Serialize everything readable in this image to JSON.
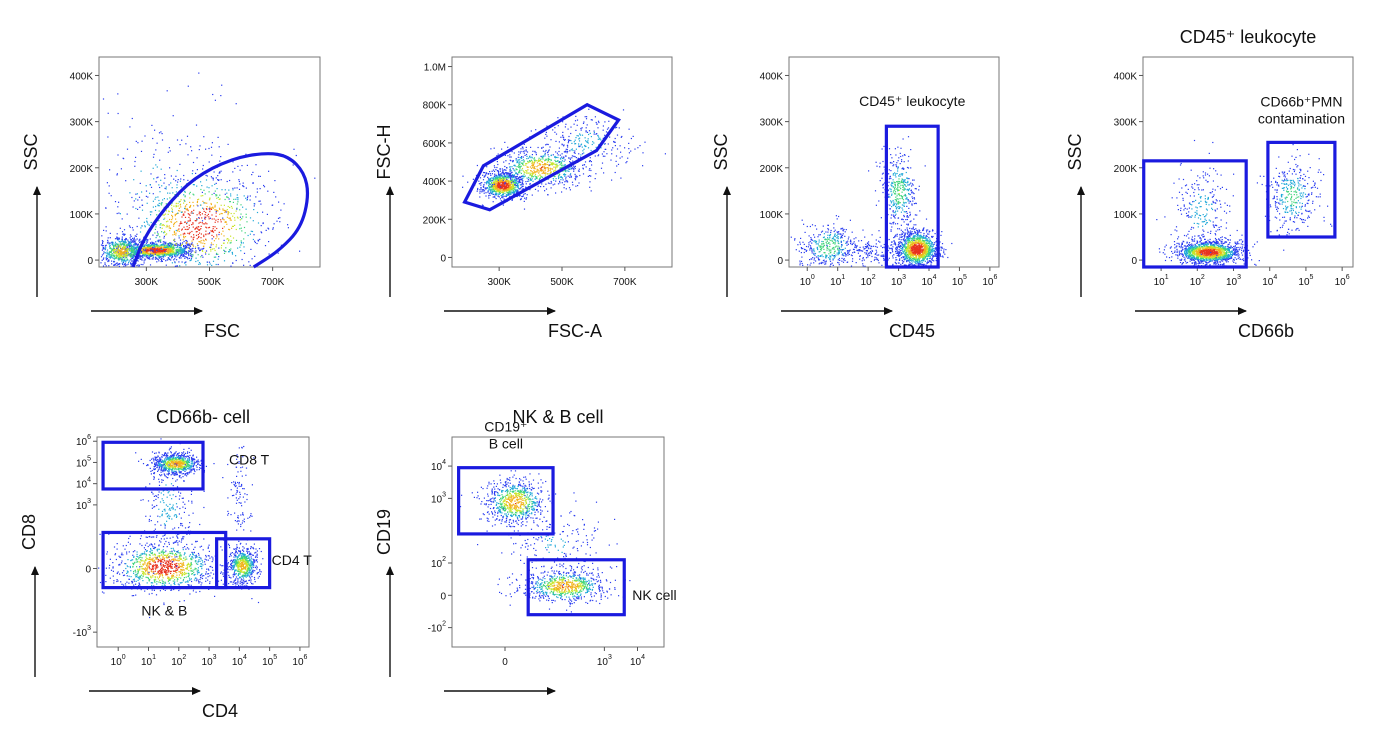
{
  "chart_data": [
    {
      "id": "p1",
      "type": "scatter",
      "title": "",
      "xlabel": "FSC",
      "ylabel": "SSC",
      "xscale": "linear",
      "yscale": "linear",
      "xlim": [
        150000,
        850000
      ],
      "ylim": [
        -15000,
        440000
      ],
      "xticks": [
        {
          "v": 300000,
          "t": "300K"
        },
        {
          "v": 500000,
          "t": "500K"
        },
        {
          "v": 700000,
          "t": "700K"
        }
      ],
      "yticks": [
        {
          "v": 0,
          "t": "0"
        },
        {
          "v": 100000,
          "t": "100K"
        },
        {
          "v": 200000,
          "t": "200K"
        },
        {
          "v": 300000,
          "t": "300K"
        },
        {
          "v": 400000,
          "t": "400K"
        }
      ],
      "clusters": [
        {
          "cx": 330000,
          "cy": 22000,
          "sx": 60000,
          "sy": 9000,
          "n": 1200
        },
        {
          "cx": 220000,
          "cy": 20000,
          "sx": 40000,
          "sy": 18000,
          "n": 600
        },
        {
          "cx": 470000,
          "cy": 80000,
          "sx": 120000,
          "sy": 60000,
          "n": 900
        },
        {
          "cx": 350000,
          "cy": 130000,
          "sx": 160000,
          "sy": 110000,
          "n": 250
        }
      ],
      "gates": [
        {
          "shape": "polygon",
          "label": "",
          "points": [
            [
              258000,
              -15000
            ],
            [
              290000,
              45000
            ],
            [
              360000,
              115000
            ],
            [
              450000,
              178000
            ],
            [
              570000,
              220000
            ],
            [
              680000,
              233000
            ],
            [
              750000,
              225000
            ],
            [
              800000,
              190000
            ],
            [
              815000,
              140000
            ],
            [
              790000,
              70000
            ],
            [
              720000,
              20000
            ],
            [
              640000,
              -15000
            ]
          ]
        }
      ]
    },
    {
      "id": "p2",
      "type": "scatter",
      "title": "",
      "xlabel": "FSC-A",
      "ylabel": "FSC-H",
      "xscale": "linear",
      "yscale": "linear",
      "xlim": [
        150000,
        850000
      ],
      "ylim": [
        -50000,
        1050000
      ],
      "xticks": [
        {
          "v": 300000,
          "t": "300K"
        },
        {
          "v": 500000,
          "t": "500K"
        },
        {
          "v": 700000,
          "t": "700K"
        }
      ],
      "yticks": [
        {
          "v": 0,
          "t": "0"
        },
        {
          "v": 200000,
          "t": "200K"
        },
        {
          "v": 400000,
          "t": "400K"
        },
        {
          "v": 600000,
          "t": "600K"
        },
        {
          "v": 800000,
          "t": "800K"
        },
        {
          "v": 1000000,
          "t": "1.0M"
        }
      ],
      "clusters": [
        {
          "cx": 310000,
          "cy": 380000,
          "sx": 35000,
          "sy": 35000,
          "n": 900
        },
        {
          "cx": 430000,
          "cy": 470000,
          "sx": 70000,
          "sy": 50000,
          "n": 700
        },
        {
          "cx": 580000,
          "cy": 600000,
          "sx": 70000,
          "sy": 70000,
          "n": 250
        }
      ],
      "gates": [
        {
          "shape": "polygon",
          "label": "",
          "points": [
            [
              190000,
              290000
            ],
            [
              250000,
              480000
            ],
            [
              580000,
              800000
            ],
            [
              680000,
              720000
            ],
            [
              610000,
              560000
            ],
            [
              270000,
              250000
            ]
          ]
        }
      ]
    },
    {
      "id": "p3",
      "type": "scatter",
      "title": "",
      "xlabel": "CD45",
      "ylabel": "SSC",
      "xscale": "log",
      "yscale": "linear",
      "xlim": [
        -0.6,
        6.3
      ],
      "ylim": [
        -15000,
        440000
      ],
      "xticks": [
        {
          "v": 0,
          "t": "10",
          "e": "0"
        },
        {
          "v": 1,
          "t": "10",
          "e": "1"
        },
        {
          "v": 2,
          "t": "10",
          "e": "2"
        },
        {
          "v": 3,
          "t": "10",
          "e": "3"
        },
        {
          "v": 4,
          "t": "10",
          "e": "4"
        },
        {
          "v": 5,
          "t": "10",
          "e": "5"
        },
        {
          "v": 6,
          "t": "10",
          "e": "6"
        }
      ],
      "yticks": [
        {
          "v": 0,
          "t": "0"
        },
        {
          "v": 100000,
          "t": "100K"
        },
        {
          "v": 200000,
          "t": "200K"
        },
        {
          "v": 300000,
          "t": "300K"
        },
        {
          "v": 400000,
          "t": "400K"
        }
      ],
      "clusters": [
        {
          "cx": 3.6,
          "cy": 25000,
          "sx": 0.35,
          "sy": 20000,
          "n": 1200
        },
        {
          "cx": 3.0,
          "cy": 150000,
          "sx": 0.3,
          "sy": 45000,
          "n": 400
        },
        {
          "cx": 0.7,
          "cy": 30000,
          "sx": 0.5,
          "sy": 25000,
          "n": 400
        },
        {
          "cx": 2.0,
          "cy": 20000,
          "sx": 0.5,
          "sy": 15000,
          "n": 150
        }
      ],
      "gates": [
        {
          "shape": "rect",
          "label": "CD45⁺ leukocyte",
          "x": [
            2.6,
            4.3
          ],
          "y": [
            -15000,
            290000
          ]
        }
      ]
    },
    {
      "id": "p4",
      "type": "scatter",
      "title": "CD45⁺ leukocyte",
      "xlabel": "CD66b",
      "ylabel": "SSC",
      "xscale": "log",
      "yscale": "linear",
      "xlim": [
        0.5,
        6.3
      ],
      "ylim": [
        -15000,
        440000
      ],
      "xticks": [
        {
          "v": 1,
          "t": "10",
          "e": "1"
        },
        {
          "v": 2,
          "t": "10",
          "e": "2"
        },
        {
          "v": 3,
          "t": "10",
          "e": "3"
        },
        {
          "v": 4,
          "t": "10",
          "e": "4"
        },
        {
          "v": 5,
          "t": "10",
          "e": "5"
        },
        {
          "v": 6,
          "t": "10",
          "e": "6"
        }
      ],
      "yticks": [
        {
          "v": 0,
          "t": "0"
        },
        {
          "v": 100000,
          "t": "100K"
        },
        {
          "v": 200000,
          "t": "200K"
        },
        {
          "v": 300000,
          "t": "300K"
        },
        {
          "v": 400000,
          "t": "400K"
        }
      ],
      "clusters": [
        {
          "cx": 2.3,
          "cy": 18000,
          "sx": 0.45,
          "sy": 12000,
          "n": 1400
        },
        {
          "cx": 2.1,
          "cy": 110000,
          "sx": 0.4,
          "sy": 50000,
          "n": 250
        },
        {
          "cx": 4.6,
          "cy": 140000,
          "sx": 0.35,
          "sy": 40000,
          "n": 350
        }
      ],
      "gates": [
        {
          "shape": "rect",
          "label": "",
          "x": [
            0.52,
            3.35
          ],
          "y": [
            -15000,
            215000
          ]
        },
        {
          "shape": "rect",
          "label": "CD66b⁺PMN contamination",
          "x": [
            3.95,
            5.8
          ],
          "y": [
            50000,
            255000
          ]
        }
      ]
    },
    {
      "id": "p5",
      "type": "scatter",
      "title": "CD66b- cell",
      "xlabel": "CD4",
      "ylabel": "CD8",
      "xscale": "log",
      "yscale": "log",
      "xlim": [
        -0.7,
        6.3
      ],
      "ylim": [
        -3.7,
        6.2
      ],
      "xticks": [
        {
          "v": 0,
          "t": "10",
          "e": "0"
        },
        {
          "v": 1,
          "t": "10",
          "e": "1"
        },
        {
          "v": 2,
          "t": "10",
          "e": "2"
        },
        {
          "v": 3,
          "t": "10",
          "e": "3"
        },
        {
          "v": 4,
          "t": "10",
          "e": "4"
        },
        {
          "v": 5,
          "t": "10",
          "e": "5"
        },
        {
          "v": 6,
          "t": "10",
          "e": "6"
        }
      ],
      "yticks": [
        {
          "v": -3,
          "t": "-10",
          "e": "3"
        },
        {
          "v": 0,
          "t": "0"
        },
        {
          "v": 3,
          "t": "10",
          "e": "3"
        },
        {
          "v": 4,
          "t": "10",
          "e": "4"
        },
        {
          "v": 5,
          "t": "10",
          "e": "5"
        },
        {
          "v": 6,
          "t": "10",
          "e": "6"
        }
      ],
      "clusters": [
        {
          "cx": 1.5,
          "cy": 0.1,
          "sx": 0.85,
          "sy": 0.6,
          "n": 1000
        },
        {
          "cx": 1.9,
          "cy": 4.95,
          "sx": 0.4,
          "sy": 0.25,
          "n": 700
        },
        {
          "cx": 4.1,
          "cy": 0.15,
          "sx": 0.25,
          "sy": 0.45,
          "n": 600
        },
        {
          "cx": 1.6,
          "cy": 3.0,
          "sx": 0.4,
          "sy": 1.4,
          "n": 250
        },
        {
          "cx": 4.0,
          "cy": 3.5,
          "sx": 0.2,
          "sy": 1.2,
          "n": 100
        }
      ],
      "gates": [
        {
          "shape": "rect",
          "label": "CD8 T",
          "x": [
            -0.5,
            2.8
          ],
          "y": [
            3.75,
            5.95
          ]
        },
        {
          "shape": "rect",
          "label": "NK & B",
          "x": [
            -0.5,
            3.55
          ],
          "y": [
            -0.9,
            1.7
          ]
        },
        {
          "shape": "rect",
          "label": "CD4 T",
          "x": [
            3.25,
            5.0
          ],
          "y": [
            -0.9,
            1.4
          ]
        }
      ]
    },
    {
      "id": "p6",
      "type": "scatter",
      "title": "NK & B cell",
      "xlabel": "",
      "ylabel": "CD19",
      "xscale": "log",
      "yscale": "log",
      "xlim": [
        -1.6,
        4.8
      ],
      "ylim": [
        -1.6,
        4.9
      ],
      "xticks": [
        {
          "v": 0,
          "t": "0"
        },
        {
          "v": 3,
          "t": "10",
          "e": "3"
        },
        {
          "v": 4,
          "t": "10",
          "e": "4"
        }
      ],
      "yticks": [
        {
          "v": -1,
          "t": "-10",
          "e": "2"
        },
        {
          "v": 0,
          "t": "0"
        },
        {
          "v": 1,
          "t": "10",
          "e": "2"
        },
        {
          "v": 3,
          "t": "10",
          "e": "3"
        },
        {
          "v": 4,
          "t": "10",
          "e": "4"
        }
      ],
      "clusters": [
        {
          "cx": 0.3,
          "cy": 2.9,
          "sx": 0.45,
          "sy": 0.35,
          "n": 700
        },
        {
          "cx": 1.8,
          "cy": 0.3,
          "sx": 0.65,
          "sy": 0.25,
          "n": 700
        },
        {
          "cx": 1.5,
          "cy": 1.6,
          "sx": 0.8,
          "sy": 0.6,
          "n": 200
        }
      ],
      "gates": [
        {
          "shape": "rect",
          "label": "CD19⁺ B cell",
          "x": [
            -1.4,
            1.45
          ],
          "y": [
            1.9,
            3.95
          ]
        },
        {
          "shape": "rect",
          "label": "NK cell",
          "x": [
            0.7,
            3.6
          ],
          "y": [
            -0.6,
            1.1
          ]
        }
      ]
    }
  ]
}
